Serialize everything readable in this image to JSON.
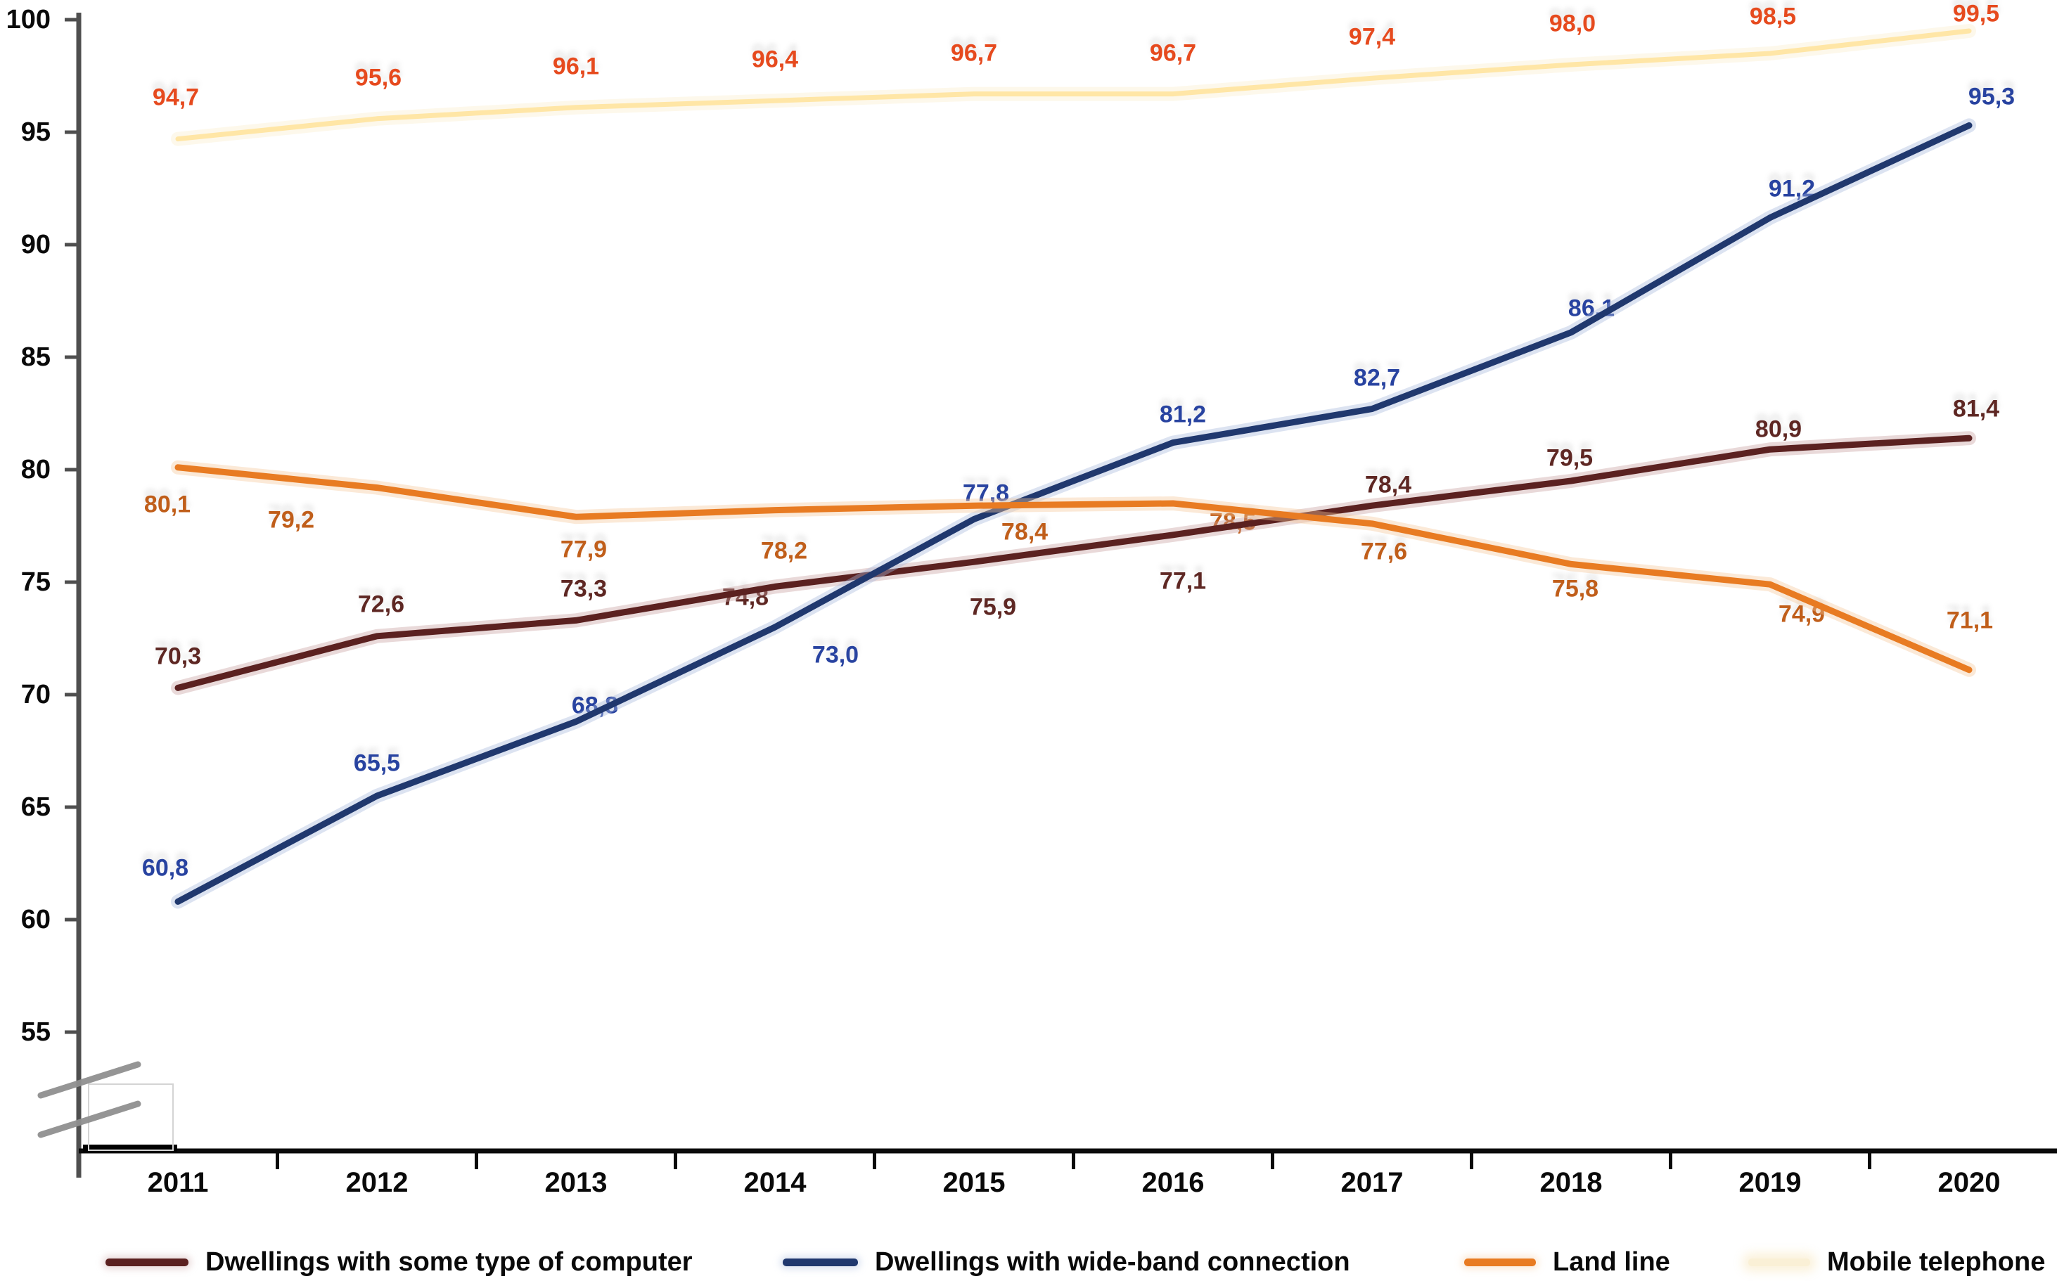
{
  "chart_data": {
    "type": "line",
    "title": "",
    "xlabel": "",
    "ylabel": "",
    "x_labels": [
      "2011",
      "2012",
      "2013",
      "2014",
      "2015",
      "2016",
      "2017",
      "2018",
      "2019",
      "2020"
    ],
    "ytick_labels": [
      "100",
      "95",
      "90",
      "85",
      "80",
      "75",
      "70",
      "65",
      "60",
      "55"
    ],
    "ytick_values": [
      100,
      95,
      90,
      85,
      80,
      75,
      70,
      65,
      60,
      55
    ],
    "ylim": [
      55,
      100
    ],
    "y_axis_break": true,
    "grid": "off",
    "legend_position": "bottom",
    "decimal_separator": ",",
    "series": [
      {
        "id": "computer",
        "name": "Dwellings with some type of computer",
        "color": "#5B2120",
        "halo_color": "#C9A0A0",
        "label_color": "#5E2723",
        "values": [
          70.3,
          72.6,
          73.3,
          74.8,
          75.9,
          77.1,
          78.4,
          79.5,
          80.9,
          81.4
        ],
        "point_labels": [
          "70,3",
          "72,6",
          "73,3",
          "74,8",
          "75,9",
          "77,1",
          "78,4",
          "79,5",
          "80,9",
          "81,4"
        ]
      },
      {
        "id": "wideband",
        "name": "Dwellings with wide-band connection",
        "color": "#20386E",
        "halo_color": "#A8B8DC",
        "label_color": "#2843A0",
        "values": [
          60.8,
          65.5,
          68.8,
          73.0,
          77.8,
          81.2,
          82.7,
          86.1,
          91.2,
          95.3
        ],
        "point_labels": [
          "60,8",
          "65,5",
          "68,8",
          "73,0",
          "77,8",
          "81,2",
          "82,7",
          "86,1",
          "91,2",
          "95,3"
        ]
      },
      {
        "id": "landline",
        "name": "Land line",
        "color": "#E87B22",
        "halo_color": "#F6C79B",
        "label_color": "#C05E1A",
        "values": [
          80.1,
          79.2,
          77.9,
          78.2,
          78.4,
          78.5,
          77.6,
          75.8,
          74.9,
          71.1
        ],
        "point_labels": [
          "80,1",
          "79,2",
          "77,9",
          "78,2",
          "78,4",
          "78,5",
          "77,6",
          "75,8",
          "74,9",
          "71,1"
        ]
      },
      {
        "id": "mobile",
        "name": "Mobile telephone",
        "color": "#FFE195",
        "halo_color": "#FBEFD2",
        "label_color": "#E64A1E",
        "values": [
          94.7,
          95.6,
          96.1,
          96.4,
          96.7,
          96.7,
          97.4,
          98.0,
          98.5,
          99.5
        ],
        "point_labels": [
          "94,7",
          "95,6",
          "96,1",
          "96,4",
          "96,7",
          "96,7",
          "97,4",
          "98,0",
          "98,5",
          "99,5"
        ]
      }
    ]
  }
}
